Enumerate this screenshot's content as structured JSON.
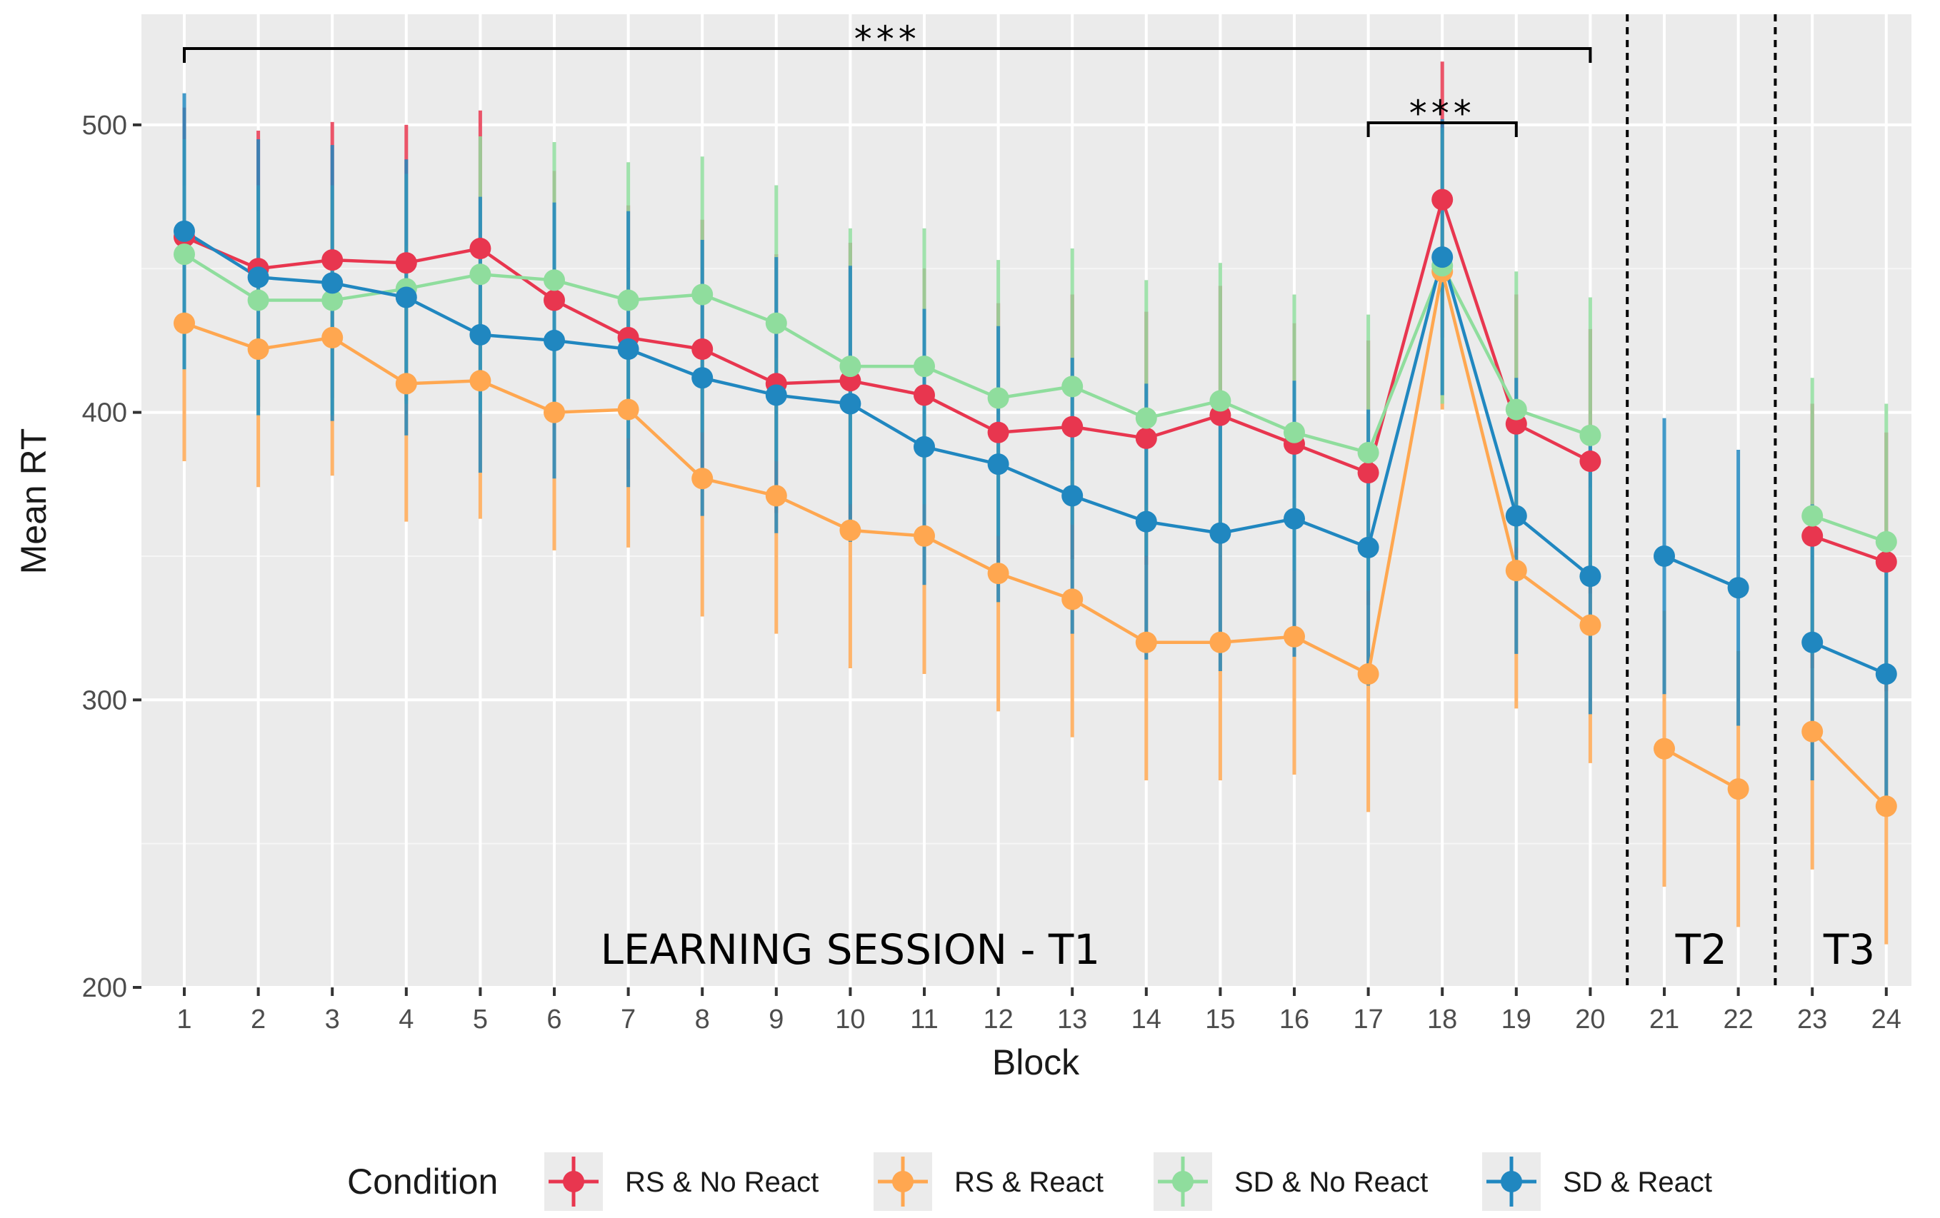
{
  "chart_data": {
    "type": "line",
    "title": "",
    "xlabel": "Block",
    "ylabel": "Mean RT",
    "ylim": [
      200,
      535
    ],
    "yticks": [
      200,
      300,
      400,
      500
    ],
    "x": [
      1,
      2,
      3,
      4,
      5,
      6,
      7,
      8,
      9,
      10,
      11,
      12,
      13,
      14,
      15,
      16,
      17,
      18,
      19,
      20,
      21,
      22,
      23,
      24
    ],
    "x_tick_labels": [
      "1",
      "2",
      "3",
      "4",
      "5",
      "6",
      "7",
      "8",
      "9",
      "10",
      "11",
      "12",
      "13",
      "14",
      "15",
      "16",
      "17",
      "18",
      "19",
      "20",
      "21",
      "22",
      "23",
      "24"
    ],
    "grid": true,
    "series": [
      {
        "name": "RS & No React",
        "color": "#e8364f",
        "segments": [
          [
            1,
            20
          ],
          [
            23,
            24
          ]
        ],
        "values": [
          461,
          450,
          453,
          452,
          457,
          439,
          426,
          422,
          410,
          411,
          406,
          393,
          395,
          391,
          399,
          389,
          379,
          474,
          396,
          383,
          null,
          null,
          357,
          348
        ],
        "errors": [
          45,
          48,
          48,
          48,
          48,
          45,
          46,
          45,
          45,
          48,
          44,
          45,
          46,
          44,
          45,
          42,
          46,
          48,
          45,
          46,
          null,
          null,
          46,
          45
        ]
      },
      {
        "name": "RS & React",
        "color": "#ffa750",
        "segments": [
          [
            1,
            20
          ],
          [
            21,
            22
          ],
          [
            23,
            24
          ]
        ],
        "values": [
          431,
          422,
          426,
          410,
          411,
          400,
          401,
          377,
          371,
          359,
          357,
          344,
          335,
          320,
          320,
          322,
          309,
          449,
          345,
          326,
          283,
          269,
          289,
          263
        ],
        "errors": [
          48,
          48,
          48,
          48,
          48,
          48,
          48,
          48,
          48,
          48,
          48,
          48,
          48,
          48,
          48,
          48,
          48,
          48,
          48,
          48,
          48,
          48,
          48,
          48
        ]
      },
      {
        "name": "SD & No React",
        "color": "#8fdd9d",
        "segments": [
          [
            1,
            20
          ],
          [
            23,
            24
          ]
        ],
        "values": [
          455,
          439,
          439,
          443,
          448,
          446,
          439,
          441,
          431,
          416,
          416,
          405,
          409,
          398,
          404,
          393,
          386,
          451,
          401,
          392,
          null,
          null,
          364,
          355
        ],
        "errors": [
          40,
          40,
          40,
          40,
          48,
          48,
          48,
          48,
          48,
          48,
          48,
          48,
          48,
          48,
          48,
          48,
          48,
          48,
          48,
          48,
          null,
          null,
          48,
          48
        ]
      },
      {
        "name": "SD & React",
        "color": "#2087c0",
        "segments": [
          [
            1,
            20
          ],
          [
            21,
            22
          ],
          [
            23,
            24
          ]
        ],
        "values": [
          463,
          447,
          445,
          440,
          427,
          425,
          422,
          412,
          406,
          403,
          388,
          382,
          371,
          362,
          358,
          363,
          353,
          454,
          364,
          343,
          350,
          339,
          320,
          309
        ],
        "errors": [
          48,
          48,
          48,
          48,
          48,
          48,
          48,
          48,
          48,
          48,
          48,
          48,
          48,
          48,
          48,
          48,
          48,
          48,
          48,
          48,
          48,
          48,
          48,
          48
        ]
      }
    ],
    "dividers": [
      20.5,
      22.5
    ],
    "session_labels": [
      {
        "text": "LEARNING SESSION - T1",
        "center": 10
      },
      {
        "text": "T2",
        "center": 21.5
      },
      {
        "text": "T3",
        "center": 23.5
      }
    ],
    "significance_brackets": [
      {
        "from": 1,
        "to": 20,
        "label": "***"
      },
      {
        "from": 17,
        "to": 19,
        "label": "***"
      }
    ],
    "legend": {
      "title": "Condition",
      "position": "bottom",
      "entries": [
        "RS & No React",
        "RS & React",
        "SD & No React",
        "SD & React"
      ]
    }
  }
}
